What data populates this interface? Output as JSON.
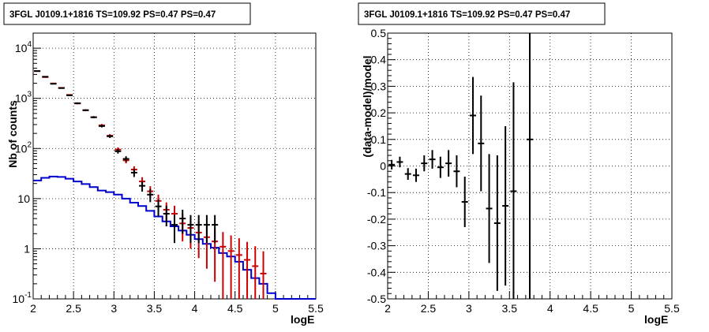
{
  "panels": [
    {
      "title": "3FGL J0109.1+1816 TS=109.92 PS=0.47 PS=0.47",
      "xlabel": "logE",
      "ylabel": "Nb of counts",
      "x_ticks": [
        "2",
        "2.5",
        "3",
        "3.5",
        "4",
        "4.5",
        "5",
        "5.5"
      ],
      "y_ticks": [
        {
          "base": "10",
          "exp": "-1"
        },
        {
          "base": "1",
          "exp": ""
        },
        {
          "base": "10",
          "exp": ""
        },
        {
          "base": "10",
          "exp": "2"
        },
        {
          "base": "10",
          "exp": "3"
        },
        {
          "base": "10",
          "exp": "4"
        }
      ]
    },
    {
      "title": "3FGL J0109.1+1816 TS=109.92 PS=0.47 PS=0.47",
      "xlabel": "logE",
      "ylabel": "(data-model)/model",
      "x_ticks": [
        "2",
        "2.5",
        "3",
        "3.5",
        "4",
        "4.5",
        "5",
        "5.5"
      ],
      "y_ticks": [
        "-0.5",
        "-0.4",
        "-0.3",
        "-0.2",
        "-0.1",
        "0",
        "0.1",
        "0.2",
        "0.3",
        "0.4",
        "0.5"
      ]
    }
  ],
  "chart_data": [
    {
      "type": "scatter",
      "title": "3FGL J0109.1+1816 TS=109.92 PS=0.47 PS=0.47",
      "xlabel": "logE",
      "ylabel": "Nb of counts",
      "xlim": [
        2,
        5.5
      ],
      "ylim": [
        0.1,
        20000
      ],
      "yscale": "log",
      "grid": true,
      "colors": {
        "data": "#000000",
        "model": "#cc0000",
        "source": "#0000cc"
      },
      "series": [
        {
          "points": [
            {
              "x": 2.05,
              "y": 3500,
              "err": 60
            },
            {
              "x": 2.15,
              "y": 2700,
              "err": 52
            },
            {
              "x": 2.25,
              "y": 1950,
              "err": 44
            },
            {
              "x": 2.35,
              "y": 1600,
              "err": 40
            },
            {
              "x": 2.45,
              "y": 1150,
              "err": 34
            },
            {
              "x": 2.55,
              "y": 800,
              "err": 28
            },
            {
              "x": 2.65,
              "y": 580,
              "err": 24
            },
            {
              "x": 2.75,
              "y": 420,
              "err": 20
            },
            {
              "x": 2.85,
              "y": 280,
              "err": 17
            },
            {
              "x": 2.95,
              "y": 175,
              "err": 13
            },
            {
              "x": 3.05,
              "y": 88,
              "err": 9
            },
            {
              "x": 3.15,
              "y": 62,
              "err": 8
            },
            {
              "x": 3.25,
              "y": 33,
              "err": 6
            },
            {
              "x": 3.35,
              "y": 18,
              "err": 4.2
            },
            {
              "x": 3.45,
              "y": 12,
              "err": 3.5
            },
            {
              "x": 3.55,
              "y": 7,
              "err": 2.6
            },
            {
              "x": 3.65,
              "y": 5,
              "err": 2.2
            },
            {
              "x": 3.75,
              "y": 3,
              "err": 1.7
            },
            {
              "x": 3.85,
              "y": 4,
              "err": 2.0
            },
            {
              "x": 3.95,
              "y": 3,
              "err": 1.7
            },
            {
              "x": 4.05,
              "y": 3,
              "err": 1.7
            },
            {
              "x": 4.15,
              "y": 3,
              "err": 1.7
            },
            {
              "x": 4.25,
              "y": 3,
              "err": 1.7
            }
          ]
        },
        {
          "points": [
            {
              "x": 2.05,
              "y": 3500,
              "err": 59
            },
            {
              "x": 2.15,
              "y": 2650,
              "err": 51
            },
            {
              "x": 2.25,
              "y": 1980,
              "err": 44
            },
            {
              "x": 2.35,
              "y": 1620,
              "err": 40
            },
            {
              "x": 2.45,
              "y": 1170,
              "err": 34
            },
            {
              "x": 2.55,
              "y": 790,
              "err": 28
            },
            {
              "x": 2.65,
              "y": 580,
              "err": 24
            },
            {
              "x": 2.75,
              "y": 420,
              "err": 20
            },
            {
              "x": 2.85,
              "y": 290,
              "err": 17
            },
            {
              "x": 2.95,
              "y": 180,
              "err": 13
            },
            {
              "x": 3.05,
              "y": 95,
              "err": 10
            },
            {
              "x": 3.15,
              "y": 58,
              "err": 7.5
            },
            {
              "x": 3.25,
              "y": 38,
              "err": 6
            },
            {
              "x": 3.35,
              "y": 22,
              "err": 4.7
            },
            {
              "x": 3.45,
              "y": 14,
              "err": 3.7
            },
            {
              "x": 3.55,
              "y": 9,
              "err": 3
            },
            {
              "x": 3.65,
              "y": 6,
              "err": 2.4
            },
            {
              "x": 3.75,
              "y": 5,
              "err": 2.2
            },
            {
              "x": 3.85,
              "y": 3.2,
              "err": 1.8
            },
            {
              "x": 3.95,
              "y": 2.6,
              "err": 1.6
            },
            {
              "x": 4.05,
              "y": 2.1,
              "err": 1.45
            },
            {
              "x": 4.15,
              "y": 1.7,
              "err": 1.3
            },
            {
              "x": 4.25,
              "y": 1.4,
              "err": 1.18
            },
            {
              "x": 4.35,
              "y": 1.1,
              "err": 1.05
            },
            {
              "x": 4.45,
              "y": 0.9,
              "err": 0.95
            },
            {
              "x": 4.55,
              "y": 0.75,
              "err": 0.87
            },
            {
              "x": 4.65,
              "y": 0.6,
              "err": 0.77
            },
            {
              "x": 4.75,
              "y": 0.45,
              "err": 0.67
            },
            {
              "x": 4.85,
              "y": 0.32,
              "err": 0.57
            }
          ]
        },
        {
          "type": "step",
          "x": [
            2.0,
            2.1,
            2.2,
            2.3,
            2.4,
            2.5,
            2.6,
            2.7,
            2.8,
            2.9,
            3.0,
            3.1,
            3.2,
            3.3,
            3.4,
            3.5,
            3.6,
            3.7,
            3.8,
            3.9,
            4.0,
            4.1,
            4.2,
            4.3,
            4.4,
            4.5,
            4.6,
            4.7,
            4.8,
            4.9,
            5.0,
            5.1,
            5.2,
            5.3,
            5.4
          ],
          "y": [
            23,
            26,
            27.5,
            27,
            25,
            22,
            19.5,
            17,
            14.5,
            13.5,
            12,
            10,
            8.3,
            7.1,
            5.7,
            4.4,
            3.5,
            2.8,
            2.3,
            1.9,
            1.55,
            1.25,
            1.05,
            0.82,
            0.7,
            0.55,
            0.38,
            0.26,
            0.2,
            0.13,
            0.1,
            0.1,
            0.1,
            0.1,
            0.1
          ]
        }
      ]
    },
    {
      "type": "scatter",
      "title": "3FGL J0109.1+1816 TS=109.92 PS=0.47 PS=0.47",
      "xlabel": "logE",
      "ylabel": "(data-model)/model",
      "xlim": [
        2,
        5.5
      ],
      "ylim": [
        -0.5,
        0.5
      ],
      "grid": true,
      "series": [
        {
          "points": [
            {
              "x": 2.05,
              "y": 0.005,
              "err": 0.018
            },
            {
              "x": 2.15,
              "y": 0.015,
              "err": 0.02
            },
            {
              "x": 2.25,
              "y": -0.03,
              "err": 0.022
            },
            {
              "x": 2.35,
              "y": -0.035,
              "err": 0.025
            },
            {
              "x": 2.45,
              "y": 0.01,
              "err": 0.03
            },
            {
              "x": 2.55,
              "y": 0.025,
              "err": 0.035
            },
            {
              "x": 2.65,
              "y": -0.005,
              "err": 0.04
            },
            {
              "x": 2.75,
              "y": 0.01,
              "err": 0.05
            },
            {
              "x": 2.85,
              "y": -0.02,
              "err": 0.06
            },
            {
              "x": 2.95,
              "y": -0.135,
              "err": 0.095
            },
            {
              "x": 3.05,
              "y": 0.19,
              "err": 0.145
            },
            {
              "x": 3.15,
              "y": 0.085,
              "err": 0.18
            },
            {
              "x": 3.25,
              "y": -0.16,
              "err": 0.205
            },
            {
              "x": 3.35,
              "y": -0.215,
              "err": 0.255
            },
            {
              "x": 3.45,
              "y": -0.15,
              "err": 0.3
            },
            {
              "x": 3.55,
              "y": -0.095,
              "err": 0.41
            },
            {
              "x": 3.75,
              "y": 0.1,
              "err": 0.6
            }
          ]
        }
      ]
    }
  ]
}
